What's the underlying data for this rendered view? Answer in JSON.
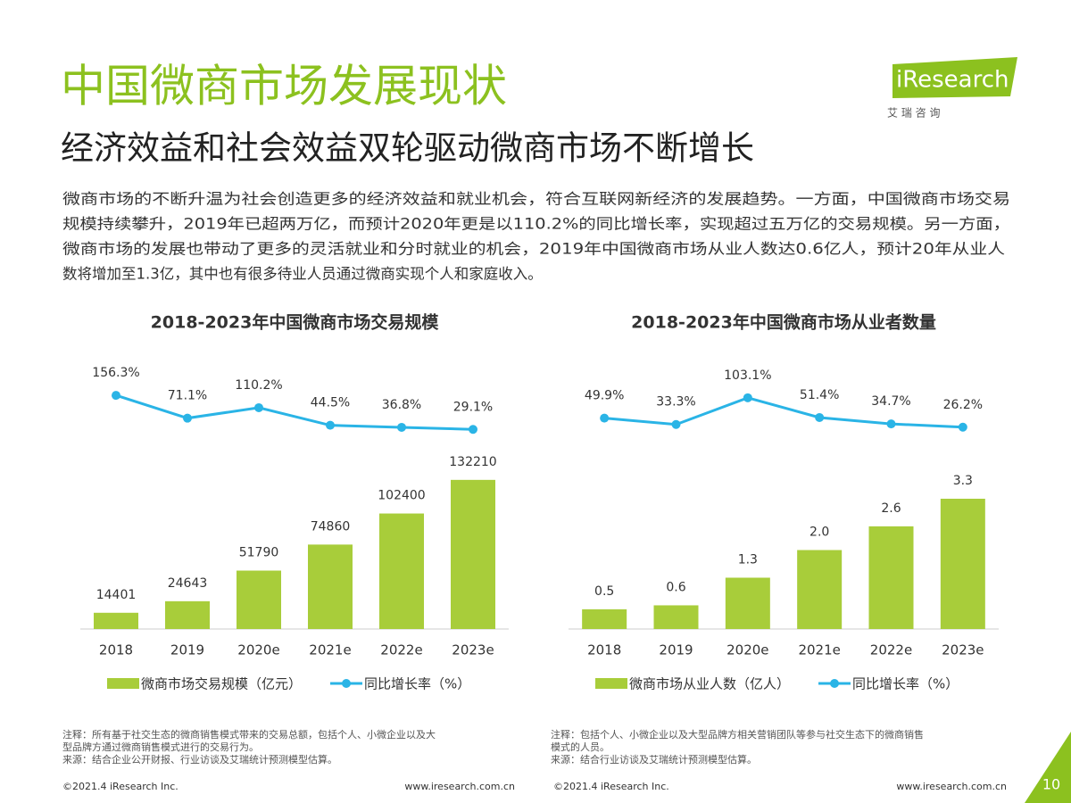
{
  "header": {
    "title": "中国微商市场发展现状",
    "subtitle": "经济效益和社会效益双轮驱动微商市场不断增长",
    "paragraph": [
      "微商市场的不断升温为社会创造更多的经济效益和就业机会，符合互联网新经济的发展趋势。一方面，中国微商市场交易",
      "规模持续攀升，2019年已超两万亿，而预计2020年更是以110.2%的同比增长率，实现超过五万亿的交易规模。另一方面，",
      "微商市场的发展也带动了更多的灵活就业和分时就业的机会，2019年中国微商市场从业人数达0.6亿人，预计20年从业人",
      "数将增加至1.3亿，其中也有很多待业人员通过微商实现个人和家庭收入。"
    ],
    "logo": "iResearch",
    "logo_sub": "艾 瑞 咨 询"
  },
  "chart_data": [
    {
      "type": "combo",
      "title": "2018-2023年中国微商市场交易规模",
      "categories": [
        "2018",
        "2019",
        "2020e",
        "2021e",
        "2022e",
        "2023e"
      ],
      "series": [
        {
          "name": "微商市场交易规模（亿元）",
          "type": "bar",
          "color": "#a8cd3a",
          "values": [
            14401,
            24643,
            51790,
            74860,
            102400,
            132210
          ]
        },
        {
          "name": "同比增长率（%）",
          "type": "line",
          "axis": "y2",
          "color": "#2ab4e6",
          "values": [
            156.3,
            71.1,
            110.2,
            44.5,
            36.8,
            29.1
          ],
          "value_labels": [
            "156.3%",
            "71.1%",
            "110.2%",
            "44.5%",
            "36.8%",
            "29.1%"
          ]
        }
      ],
      "ylim": [
        0,
        140000
      ],
      "y2lim": [
        0,
        200
      ],
      "notes": [
        "注释：所有基于社交生态的微商销售模式带来的交易总额，包括个人、小微企业以及大",
        "型品牌方通过微商销售模式进行的交易行为。",
        "来源：结合企业公开财报、行业访谈及艾瑞统计预测模型估算。"
      ]
    },
    {
      "type": "combo",
      "title": "2018-2023年中国微商市场从业者数量",
      "categories": [
        "2018",
        "2019",
        "2020e",
        "2021e",
        "2022e",
        "2023e"
      ],
      "series": [
        {
          "name": "微商市场从业人数（亿人）",
          "type": "bar",
          "color": "#a8cd3a",
          "values": [
            0.5,
            0.6,
            1.3,
            2.0,
            2.6,
            3.3
          ],
          "value_labels": [
            "0.5",
            "0.6",
            "1.3",
            "2.0",
            "2.6",
            "3.3"
          ]
        },
        {
          "name": "同比增长率（%）",
          "type": "line",
          "axis": "y2",
          "color": "#2ab4e6",
          "values": [
            49.9,
            33.3,
            103.1,
            51.4,
            34.7,
            26.2
          ],
          "value_labels": [
            "49.9%",
            "33.3%",
            "103.1%",
            "51.4%",
            "34.7%",
            "26.2%"
          ]
        }
      ],
      "ylim": [
        0,
        4
      ],
      "y2lim": [
        0,
        140
      ],
      "notes": [
        "注释：包括个人、小微企业以及大型品牌方相关营销团队等参与社交生态下的微商销售",
        "模式的人员。",
        "来源：结合行业访谈及艾瑞统计预测模型估算。"
      ]
    }
  ],
  "footer": {
    "items": [
      "©2021.4 iResearch Inc.",
      "www.iresearch.com.cn",
      "©2021.4 iResearch Inc.",
      "www.iresearch.com.cn"
    ],
    "page": "10"
  }
}
